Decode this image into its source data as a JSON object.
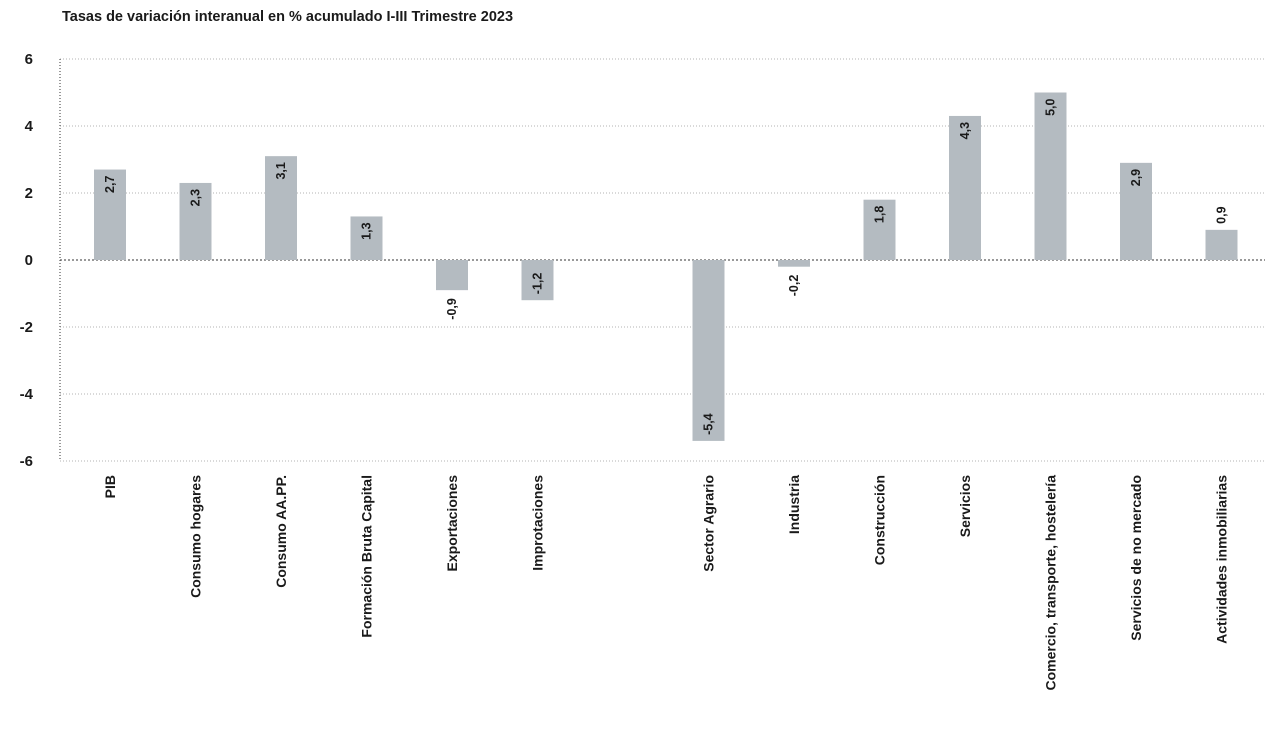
{
  "chart_data": {
    "type": "bar",
    "title": "Tasas de variación interanual en % acumulado I-III Trimestre 2023",
    "xlabel": "",
    "ylabel": "",
    "ylim": [
      -6,
      6
    ],
    "yticks": [
      6,
      4,
      2,
      0,
      -2,
      -4,
      -6
    ],
    "ytick_labels": [
      "6",
      "4",
      "2",
      "0",
      "-2",
      "-4",
      "-6"
    ],
    "grid": true,
    "legend": "none",
    "bar_color": "#b4bbc1",
    "categories": [
      "PIB",
      "Consumo hogares",
      "Consumo AA.PP.",
      "Formación Bruta Capital",
      "Exportaciones",
      "Improtaciones",
      "Sector Agrario",
      "Industria",
      "Construcción",
      "Servicios",
      "Comercio, transporte, hostelería",
      "Servicios de no mercado",
      "Actividades inmobiliarias"
    ],
    "slots": [
      0,
      1,
      2,
      3,
      4,
      5,
      7,
      8,
      9,
      10,
      11,
      12,
      13
    ],
    "values": [
      2.7,
      2.3,
      3.1,
      1.3,
      -0.9,
      -1.2,
      -5.4,
      -0.2,
      1.8,
      4.3,
      5.0,
      2.9,
      0.9
    ],
    "value_labels": [
      "2,7",
      "2,3",
      "3,1",
      "1,3",
      "-0,9",
      "-1,2",
      "-5,4",
      "-0,2",
      "1,8",
      "4,3",
      "5,0",
      "2,9",
      "0,9"
    ]
  }
}
